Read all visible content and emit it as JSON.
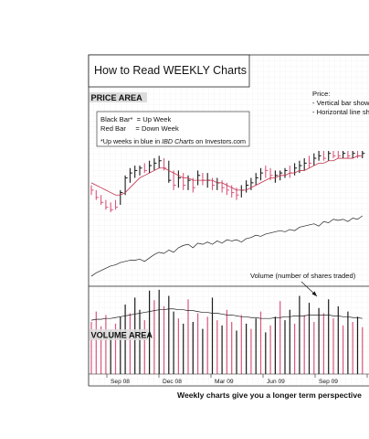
{
  "chart_data": {
    "type": "bar",
    "title": "How to Read WEEKLY Charts",
    "price_area_label": "PRICE AREA",
    "volume_area_label": "VOLUME AREA",
    "legend": {
      "black_bar": "Black Bar*  = Up Week",
      "red_bar": "Red Bar     = Down Week",
      "note_prefix": "*Up weeks in blue in ",
      "note_italic": "IBD Charts",
      "note_suffix": " on Investors.com"
    },
    "annotations": {
      "price_heading": "Price:",
      "price_line1": "- Vertical bar shows",
      "price_line2": "- Horizontal line sho",
      "volume_note": "Volume (number of shares traded)"
    },
    "x_tick_labels": [
      "Sep 08",
      "Dec 08",
      "Mar 09",
      "Jun 09",
      "Sep 09"
    ],
    "caption": "Weekly charts give you a longer term perspective",
    "colors": {
      "up": "#1a1a1a",
      "down": "#d9587e",
      "moving_average": "#c0304a",
      "line": "#222222"
    },
    "price_weeks": [
      {
        "d": -1,
        "h": 44,
        "l": 40,
        "c": 42
      },
      {
        "d": -1,
        "h": 42,
        "l": 38,
        "c": 39
      },
      {
        "d": -1,
        "h": 40,
        "l": 36,
        "c": 37
      },
      {
        "d": -1,
        "h": 38,
        "l": 34,
        "c": 35
      },
      {
        "d": -1,
        "h": 37,
        "l": 33,
        "c": 34
      },
      {
        "d": -1,
        "h": 38,
        "l": 34,
        "c": 35
      },
      {
        "d": 1,
        "h": 42,
        "l": 36,
        "c": 41
      },
      {
        "d": 1,
        "h": 48,
        "l": 40,
        "c": 47
      },
      {
        "d": 1,
        "h": 51,
        "l": 45,
        "c": 49
      },
      {
        "d": 1,
        "h": 52,
        "l": 47,
        "c": 50
      },
      {
        "d": 1,
        "h": 52,
        "l": 48,
        "c": 51
      },
      {
        "d": -1,
        "h": 53,
        "l": 49,
        "c": 50
      },
      {
        "d": 1,
        "h": 54,
        "l": 49,
        "c": 52
      },
      {
        "d": 1,
        "h": 55,
        "l": 50,
        "c": 53
      },
      {
        "d": 1,
        "h": 56,
        "l": 51,
        "c": 54
      },
      {
        "d": -1,
        "h": 55,
        "l": 50,
        "c": 51
      },
      {
        "d": 1,
        "h": 54,
        "l": 45,
        "c": 46
      },
      {
        "d": -1,
        "h": 50,
        "l": 42,
        "c": 44
      },
      {
        "d": 1,
        "h": 50,
        "l": 43,
        "c": 47
      },
      {
        "d": -1,
        "h": 49,
        "l": 42,
        "c": 44
      },
      {
        "d": 1,
        "h": 48,
        "l": 42,
        "c": 46
      },
      {
        "d": -1,
        "h": 47,
        "l": 41,
        "c": 43
      },
      {
        "d": 1,
        "h": 50,
        "l": 44,
        "c": 48
      },
      {
        "d": -1,
        "h": 49,
        "l": 44,
        "c": 46
      },
      {
        "d": 1,
        "h": 49,
        "l": 43,
        "c": 46
      },
      {
        "d": -1,
        "h": 47,
        "l": 42,
        "c": 44
      },
      {
        "d": 1,
        "h": 47,
        "l": 42,
        "c": 45
      },
      {
        "d": -1,
        "h": 46,
        "l": 41,
        "c": 43
      },
      {
        "d": -1,
        "h": 45,
        "l": 40,
        "c": 42
      },
      {
        "d": -1,
        "h": 44,
        "l": 39,
        "c": 41
      },
      {
        "d": -1,
        "h": 43,
        "l": 38,
        "c": 40
      },
      {
        "d": 1,
        "h": 44,
        "l": 39,
        "c": 42
      },
      {
        "d": 1,
        "h": 46,
        "l": 41,
        "c": 44
      },
      {
        "d": 1,
        "h": 47,
        "l": 42,
        "c": 45
      },
      {
        "d": 1,
        "h": 49,
        "l": 44,
        "c": 47
      },
      {
        "d": 1,
        "h": 51,
        "l": 46,
        "c": 49
      },
      {
        "d": -1,
        "h": 52,
        "l": 47,
        "c": 50
      },
      {
        "d": -1,
        "h": 51,
        "l": 46,
        "c": 48
      },
      {
        "d": 1,
        "h": 50,
        "l": 45,
        "c": 48
      },
      {
        "d": 1,
        "h": 50,
        "l": 46,
        "c": 49
      },
      {
        "d": 1,
        "h": 51,
        "l": 47,
        "c": 50
      },
      {
        "d": -1,
        "h": 52,
        "l": 47,
        "c": 49
      },
      {
        "d": 1,
        "h": 53,
        "l": 48,
        "c": 51
      },
      {
        "d": 1,
        "h": 54,
        "l": 49,
        "c": 52
      },
      {
        "d": 1,
        "h": 55,
        "l": 50,
        "c": 53
      },
      {
        "d": -1,
        "h": 56,
        "l": 51,
        "c": 53
      },
      {
        "d": 1,
        "h": 57,
        "l": 52,
        "c": 55
      },
      {
        "d": 1,
        "h": 58,
        "l": 54,
        "c": 56
      },
      {
        "d": -1,
        "h": 58,
        "l": 54,
        "c": 55
      },
      {
        "d": 1,
        "h": 58,
        "l": 54,
        "c": 57
      },
      {
        "d": -1,
        "h": 58,
        "l": 55,
        "c": 56
      },
      {
        "d": -1,
        "h": 58,
        "l": 55,
        "c": 56
      },
      {
        "d": 1,
        "h": 58,
        "l": 55,
        "c": 57
      },
      {
        "d": -1,
        "h": 58,
        "l": 55,
        "c": 56
      },
      {
        "d": 1,
        "h": 58,
        "l": 55,
        "c": 57
      },
      {
        "d": -1,
        "h": 58,
        "l": 55,
        "c": 56
      },
      {
        "d": 1,
        "h": 58,
        "l": 55,
        "c": 57
      }
    ],
    "moving_average": [
      45,
      44,
      43,
      42,
      41,
      40,
      40,
      41,
      43,
      45,
      47,
      48,
      49,
      50,
      51,
      51,
      50,
      49,
      48,
      47,
      47,
      46,
      46,
      46,
      46,
      46,
      45,
      45,
      44,
      43,
      42,
      42,
      42,
      43,
      44,
      45,
      46,
      47,
      47,
      48,
      48,
      49,
      49,
      50,
      50,
      51,
      52,
      53,
      53,
      54,
      54,
      55,
      55,
      55,
      55,
      56,
      56
    ],
    "relative_strength": [
      8,
      11,
      13,
      15,
      17,
      18,
      20,
      21,
      22,
      22,
      23,
      21,
      24,
      27,
      29,
      28,
      31,
      29,
      33,
      35,
      36,
      33,
      37,
      36,
      38,
      36,
      39,
      37,
      40,
      39,
      40,
      38,
      41,
      42,
      44,
      43,
      45,
      46,
      47,
      48,
      47,
      49,
      48,
      51,
      52,
      53,
      54,
      52,
      56,
      55,
      58,
      57,
      58,
      56,
      59,
      58,
      61
    ],
    "volume_weeks": [
      {
        "d": -1,
        "v": 60
      },
      {
        "d": -1,
        "v": 72
      },
      {
        "d": -1,
        "v": 55
      },
      {
        "d": -1,
        "v": 68
      },
      {
        "d": 1,
        "v": 50
      },
      {
        "d": -1,
        "v": 58
      },
      {
        "d": 1,
        "v": 66
      },
      {
        "d": 1,
        "v": 80
      },
      {
        "d": -1,
        "v": 70
      },
      {
        "d": 1,
        "v": 88
      },
      {
        "d": 1,
        "v": 74
      },
      {
        "d": -1,
        "v": 62
      },
      {
        "d": 1,
        "v": 96
      },
      {
        "d": -1,
        "v": 85
      },
      {
        "d": 1,
        "v": 97
      },
      {
        "d": -1,
        "v": 78
      },
      {
        "d": 1,
        "v": 90
      },
      {
        "d": 1,
        "v": 72
      },
      {
        "d": -1,
        "v": 64
      },
      {
        "d": 1,
        "v": 58
      },
      {
        "d": -1,
        "v": 86
      },
      {
        "d": 1,
        "v": 60
      },
      {
        "d": -1,
        "v": 70
      },
      {
        "d": 1,
        "v": 52
      },
      {
        "d": -1,
        "v": 66
      },
      {
        "d": 1,
        "v": 88
      },
      {
        "d": -1,
        "v": 62
      },
      {
        "d": 1,
        "v": 56
      },
      {
        "d": -1,
        "v": 74
      },
      {
        "d": -1,
        "v": 60
      },
      {
        "d": 1,
        "v": 50
      },
      {
        "d": -1,
        "v": 68
      },
      {
        "d": 1,
        "v": 58
      },
      {
        "d": -1,
        "v": 52
      },
      {
        "d": 1,
        "v": 64
      },
      {
        "d": -1,
        "v": 72
      },
      {
        "d": 1,
        "v": 48
      },
      {
        "d": -1,
        "v": 56
      },
      {
        "d": 1,
        "v": 66
      },
      {
        "d": -1,
        "v": 84
      },
      {
        "d": 1,
        "v": 62
      },
      {
        "d": 1,
        "v": 74
      },
      {
        "d": -1,
        "v": 58
      },
      {
        "d": 1,
        "v": 90
      },
      {
        "d": -1,
        "v": 68
      },
      {
        "d": 1,
        "v": 82
      },
      {
        "d": -1,
        "v": 60
      },
      {
        "d": 1,
        "v": 76
      },
      {
        "d": -1,
        "v": 70
      },
      {
        "d": 1,
        "v": 86
      },
      {
        "d": -1,
        "v": 64
      },
      {
        "d": 1,
        "v": 78
      },
      {
        "d": -1,
        "v": 56
      },
      {
        "d": 1,
        "v": 72
      },
      {
        "d": -1,
        "v": 60
      },
      {
        "d": 1,
        "v": 66
      },
      {
        "d": -1,
        "v": 54
      }
    ],
    "volume_average": [
      62,
      63,
      63,
      64,
      64,
      65,
      66,
      67,
      68,
      69,
      70,
      71,
      72,
      73,
      74,
      74,
      75,
      75,
      74,
      74,
      73,
      73,
      72,
      71,
      71,
      70,
      70,
      69,
      68,
      68,
      67,
      66,
      66,
      65,
      65,
      64,
      64,
      64,
      65,
      65,
      66,
      66,
      67,
      67,
      67,
      68,
      68,
      68,
      68,
      68,
      67,
      67,
      66,
      66,
      65,
      65,
      64
    ]
  }
}
